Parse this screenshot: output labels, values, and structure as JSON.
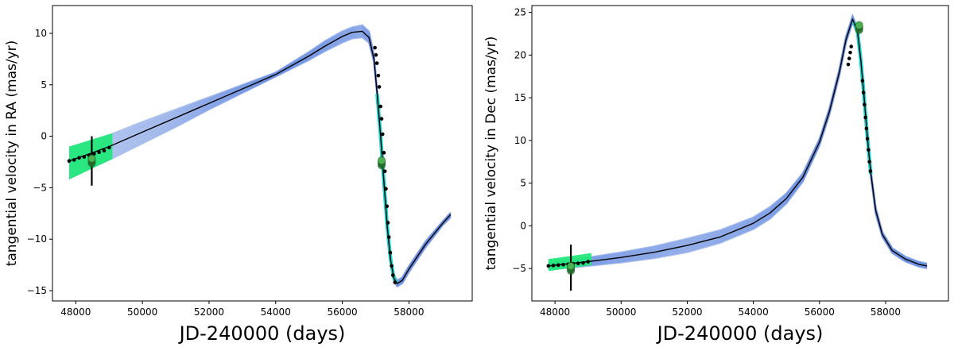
{
  "chart_data": [
    {
      "type": "line",
      "xlabel": "JD-240000 (days)",
      "ylabel": "tangential velocity in RA (mas/yr)",
      "xlim": [
        47300,
        59900
      ],
      "ylim": [
        -16,
        12.7
      ],
      "xticks": [
        48000,
        50000,
        52000,
        54000,
        56000,
        58000
      ],
      "yticks": [
        10,
        5,
        0,
        -5,
        -10,
        -15
      ],
      "grid": false,
      "colors": {
        "model": "#000000",
        "ensemble": "#6b8fe0",
        "band": "#22e87a",
        "band2": "#18d6d0",
        "points": "#000000",
        "marker": "#4caf50"
      },
      "model_curve": {
        "x": [
          47800,
          48500,
          49000,
          50000,
          51000,
          52000,
          53000,
          54000,
          55000,
          55500,
          56000,
          56300,
          56600,
          56800,
          56950,
          57050,
          57150,
          57250,
          57350,
          57450,
          57550,
          57650,
          57800,
          58000,
          58500,
          59000,
          59250
        ],
        "y": [
          -2.4,
          -1.6,
          -1.0,
          0.4,
          1.8,
          3.2,
          4.6,
          6.0,
          7.8,
          8.8,
          9.7,
          10.1,
          10.2,
          9.6,
          7.5,
          4.0,
          0.0,
          -4.5,
          -8.8,
          -12.0,
          -13.8,
          -14.3,
          -14.0,
          -12.9,
          -10.5,
          -8.5,
          -7.6
        ]
      },
      "ensemble_spread": {
        "x": [
          47800,
          48500,
          49000,
          50000,
          51000,
          52000,
          53000,
          54000,
          55000,
          55500,
          56000,
          56300,
          56600,
          56800,
          56950,
          57050,
          57150,
          57250,
          57350,
          57450,
          57550,
          57650,
          57800,
          58000,
          58500,
          59000,
          59250
        ],
        "y_low": [
          -4.0,
          -3.0,
          -2.3,
          -0.7,
          0.9,
          2.6,
          4.2,
          5.8,
          7.4,
          8.3,
          9.1,
          9.5,
          9.6,
          9.1,
          7.2,
          3.8,
          -0.2,
          -4.7,
          -9.0,
          -12.2,
          -14.1,
          -14.6,
          -14.3,
          -13.2,
          -10.8,
          -8.7,
          -7.9
        ],
        "y_high": [
          -1.2,
          -0.4,
          0.1,
          1.4,
          2.6,
          3.8,
          5.0,
          6.2,
          8.2,
          9.3,
          10.2,
          10.6,
          10.8,
          10.2,
          7.9,
          4.3,
          0.3,
          -4.2,
          -8.5,
          -11.7,
          -13.5,
          -14.0,
          -13.7,
          -12.6,
          -10.2,
          -8.3,
          -7.4
        ]
      },
      "band_early": {
        "x": [
          47800,
          49100
        ],
        "y_low": [
          -4.2,
          -2.2
        ],
        "y_high": [
          -1.0,
          0.3
        ]
      },
      "band_late": {
        "x": [
          57050,
          57600
        ],
        "y_low": [
          4.0,
          -13.9
        ],
        "y_high": [
          4.4,
          -13.5
        ]
      },
      "data_points": [
        {
          "x": 47800,
          "y": -2.4
        },
        {
          "x": 47950,
          "y": -2.3
        },
        {
          "x": 48100,
          "y": -2.1
        },
        {
          "x": 48250,
          "y": -2.0
        },
        {
          "x": 48400,
          "y": -1.85
        },
        {
          "x": 48550,
          "y": -1.7
        },
        {
          "x": 48700,
          "y": -1.55
        },
        {
          "x": 48850,
          "y": -1.4
        },
        {
          "x": 49000,
          "y": -1.1
        },
        {
          "x": 56980,
          "y": 8.6
        },
        {
          "x": 57010,
          "y": 7.9
        },
        {
          "x": 57040,
          "y": 7.1
        },
        {
          "x": 57080,
          "y": 5.9
        },
        {
          "x": 57110,
          "y": 4.8
        },
        {
          "x": 57150,
          "y": 2.9
        },
        {
          "x": 57180,
          "y": 1.7
        },
        {
          "x": 57210,
          "y": 0.2
        },
        {
          "x": 57250,
          "y": -1.6
        },
        {
          "x": 57280,
          "y": -3.4
        },
        {
          "x": 57310,
          "y": -5.1
        },
        {
          "x": 57340,
          "y": -6.8
        },
        {
          "x": 57370,
          "y": -8.4
        },
        {
          "x": 57400,
          "y": -9.8
        },
        {
          "x": 57440,
          "y": -11.3
        },
        {
          "x": 57480,
          "y": -12.6
        },
        {
          "x": 57520,
          "y": -13.5
        },
        {
          "x": 57580,
          "y": -14.2
        }
      ],
      "error_bars": [
        {
          "x": 48480,
          "y_low": -4.8,
          "y_high": 0.0
        }
      ],
      "markers": [
        {
          "x": 48480,
          "y": -2.4
        },
        {
          "x": 57180,
          "y": -2.6
        }
      ]
    },
    {
      "type": "line",
      "xlabel": "JD-240000 (days)",
      "ylabel": "tangential velocity in Dec (mas/yr)",
      "xlim": [
        47300,
        59900
      ],
      "ylim": [
        -8.8,
        25.8
      ],
      "xticks": [
        48000,
        50000,
        52000,
        54000,
        56000,
        58000
      ],
      "yticks": [
        25,
        20,
        15,
        10,
        5,
        0,
        -5
      ],
      "grid": false,
      "colors": {
        "model": "#000000",
        "ensemble": "#6b8fe0",
        "band": "#22e87a",
        "band2": "#18d6d0",
        "points": "#000000",
        "marker": "#4caf50"
      },
      "model_curve": {
        "x": [
          47800,
          48500,
          49000,
          50000,
          51000,
          52000,
          53000,
          54000,
          54500,
          55000,
          55500,
          56000,
          56300,
          56600,
          56800,
          57000,
          57150,
          57250,
          57350,
          57450,
          57550,
          57700,
          57900,
          58200,
          58600,
          59000,
          59250
        ],
        "y": [
          -4.7,
          -4.4,
          -4.2,
          -3.7,
          -3.1,
          -2.3,
          -1.3,
          0.3,
          1.5,
          3.2,
          5.7,
          9.8,
          13.4,
          18.0,
          21.8,
          24.2,
          22.8,
          19.4,
          15.0,
          10.3,
          6.2,
          1.8,
          -1.0,
          -2.9,
          -3.9,
          -4.5,
          -4.7
        ]
      },
      "ensemble_spread": {
        "x": [
          47800,
          48500,
          49000,
          50000,
          51000,
          52000,
          53000,
          54000,
          54500,
          55000,
          55500,
          56000,
          56300,
          56600,
          56800,
          57000,
          57150,
          57250,
          57350,
          57450,
          57550,
          57700,
          57900,
          58200,
          58600,
          59000,
          59250
        ],
        "y_low": [
          -5.1,
          -4.9,
          -4.7,
          -4.3,
          -3.8,
          -3.1,
          -2.0,
          -0.4,
          0.8,
          2.6,
          5.2,
          9.4,
          13.0,
          17.6,
          21.4,
          23.8,
          22.4,
          19.0,
          14.6,
          9.9,
          5.8,
          1.4,
          -1.3,
          -3.2,
          -4.2,
          -4.8,
          -5.0
        ],
        "y_high": [
          -4.3,
          -4.0,
          -3.7,
          -3.1,
          -2.4,
          -1.5,
          -0.5,
          1.0,
          2.2,
          3.8,
          6.2,
          10.2,
          13.8,
          18.4,
          22.2,
          24.6,
          23.2,
          19.8,
          15.4,
          10.7,
          6.6,
          2.2,
          -0.7,
          -2.6,
          -3.6,
          -4.2,
          -4.4
        ]
      },
      "band_early": {
        "x": [
          47800,
          49100
        ],
        "y_low": [
          -5.3,
          -4.6
        ],
        "y_high": [
          -3.9,
          -3.2
        ]
      },
      "band_late": {
        "x": [
          57050,
          57550
        ],
        "y_low": [
          23.0,
          6.0
        ],
        "y_high": [
          24.6,
          6.6
        ]
      },
      "data_points": [
        {
          "x": 47800,
          "y": -4.7
        },
        {
          "x": 47950,
          "y": -4.65
        },
        {
          "x": 48100,
          "y": -4.6
        },
        {
          "x": 48250,
          "y": -4.55
        },
        {
          "x": 48400,
          "y": -4.5
        },
        {
          "x": 48550,
          "y": -4.45
        },
        {
          "x": 48700,
          "y": -4.4
        },
        {
          "x": 48850,
          "y": -4.35
        },
        {
          "x": 49000,
          "y": -4.2
        },
        {
          "x": 56870,
          "y": 18.9
        },
        {
          "x": 56900,
          "y": 19.6
        },
        {
          "x": 56930,
          "y": 20.3
        },
        {
          "x": 56960,
          "y": 21.0
        },
        {
          "x": 57300,
          "y": 17.0
        },
        {
          "x": 57330,
          "y": 15.6
        },
        {
          "x": 57360,
          "y": 14.2
        },
        {
          "x": 57390,
          "y": 12.7
        },
        {
          "x": 57420,
          "y": 11.4
        },
        {
          "x": 57450,
          "y": 10.2
        },
        {
          "x": 57480,
          "y": 8.9
        },
        {
          "x": 57510,
          "y": 7.5
        },
        {
          "x": 57540,
          "y": 6.4
        }
      ],
      "error_bars": [
        {
          "x": 48480,
          "y_low": -7.6,
          "y_high": -2.2
        }
      ],
      "markers": [
        {
          "x": 48480,
          "y": -5.0
        },
        {
          "x": 57200,
          "y": 23.2
        }
      ]
    }
  ]
}
